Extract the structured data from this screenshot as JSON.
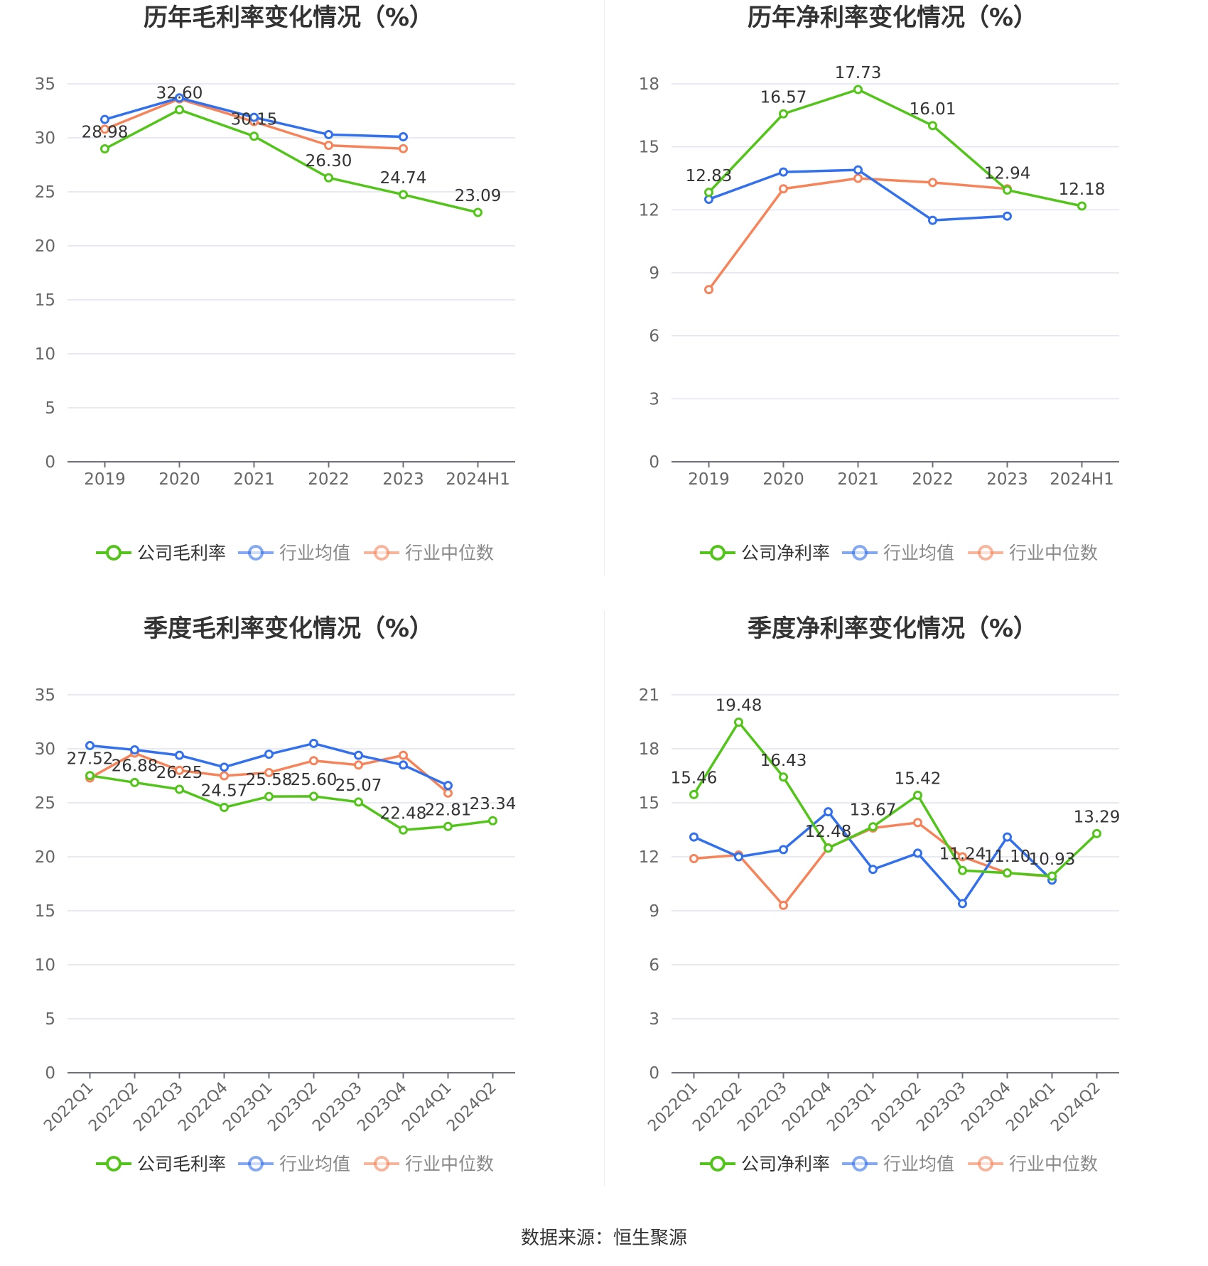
{
  "source": "数据来源：恒生聚源",
  "colors": {
    "company": "#52c41a",
    "avg": "#3370eb",
    "median": "#f5845a"
  },
  "chart_data": [
    {
      "type": "line",
      "title": "历年毛利率变化情况（%）",
      "categories": [
        "2019",
        "2020",
        "2021",
        "2022",
        "2023",
        "2024H1"
      ],
      "ylim": [
        0,
        35
      ],
      "yticks": [
        0,
        5,
        10,
        15,
        20,
        25,
        30,
        35
      ],
      "grid": true,
      "legend_position": "bottom",
      "series": [
        {
          "name": "公司毛利率",
          "values": [
            28.98,
            32.6,
            30.15,
            26.3,
            24.74,
            23.09
          ],
          "labels": [
            "28.98",
            "32.60",
            "30.15",
            "26.30",
            "24.74",
            "23.09"
          ]
        },
        {
          "name": "行业均值",
          "values": [
            31.7,
            33.7,
            31.9,
            30.3,
            30.1,
            null
          ]
        },
        {
          "name": "行业中位数",
          "values": [
            30.8,
            33.6,
            31.5,
            29.3,
            29.0,
            null
          ]
        }
      ]
    },
    {
      "type": "line",
      "title": "历年净利率变化情况（%）",
      "categories": [
        "2019",
        "2020",
        "2021",
        "2022",
        "2023",
        "2024H1"
      ],
      "ylim": [
        0,
        18
      ],
      "yticks": [
        0,
        3,
        6,
        9,
        12,
        15,
        18
      ],
      "grid": true,
      "legend_position": "bottom",
      "series": [
        {
          "name": "公司净利率",
          "values": [
            12.83,
            16.57,
            17.73,
            16.01,
            12.94,
            12.18
          ],
          "labels": [
            "12.83",
            "16.57",
            "17.73",
            "16.01",
            "12.94",
            "12.18"
          ]
        },
        {
          "name": "行业均值",
          "values": [
            12.5,
            13.8,
            13.9,
            11.5,
            11.7,
            null
          ]
        },
        {
          "name": "行业中位数",
          "values": [
            8.2,
            13.0,
            13.5,
            13.3,
            13.0,
            null
          ]
        }
      ]
    },
    {
      "type": "line",
      "title": "季度毛利率变化情况（%）",
      "categories": [
        "2022Q1",
        "2022Q2",
        "2022Q3",
        "2022Q4",
        "2023Q1",
        "2023Q2",
        "2023Q3",
        "2023Q4",
        "2024Q1",
        "2024Q2"
      ],
      "ylim": [
        0,
        35
      ],
      "yticks": [
        0,
        5,
        10,
        15,
        20,
        25,
        30,
        35
      ],
      "grid": true,
      "legend_position": "bottom",
      "series": [
        {
          "name": "公司毛利率",
          "values": [
            27.52,
            26.88,
            26.25,
            24.57,
            25.58,
            25.6,
            25.07,
            22.48,
            22.81,
            23.34
          ],
          "labels": [
            "27.52",
            "26.88",
            "26.25",
            "24.57",
            "25.58",
            "25.60",
            "25.07",
            "22.48",
            "22.81",
            "23.34"
          ]
        },
        {
          "name": "行业均值",
          "values": [
            30.3,
            29.9,
            29.4,
            28.3,
            29.5,
            30.5,
            29.4,
            28.5,
            26.6,
            null
          ]
        },
        {
          "name": "行业中位数",
          "values": [
            27.3,
            29.6,
            28.0,
            27.5,
            27.8,
            28.9,
            28.5,
            29.4,
            25.9,
            null
          ]
        }
      ]
    },
    {
      "type": "line",
      "title": "季度净利率变化情况（%）",
      "categories": [
        "2022Q1",
        "2022Q2",
        "2022Q3",
        "2022Q4",
        "2023Q1",
        "2023Q2",
        "2023Q3",
        "2023Q4",
        "2024Q1",
        "2024Q2"
      ],
      "ylim": [
        0,
        21
      ],
      "yticks": [
        0,
        3,
        6,
        9,
        12,
        15,
        18,
        21
      ],
      "grid": true,
      "legend_position": "bottom",
      "series": [
        {
          "name": "公司净利率",
          "values": [
            15.46,
            19.48,
            16.43,
            12.48,
            13.67,
            15.42,
            11.24,
            11.1,
            10.93,
            13.29
          ],
          "labels": [
            "15.46",
            "19.48",
            "16.43",
            "12.48",
            "13.67",
            "15.42",
            "11.24",
            "11.10",
            "10.93",
            "13.29"
          ]
        },
        {
          "name": "行业均值",
          "values": [
            13.1,
            12.0,
            12.4,
            14.5,
            11.3,
            12.2,
            9.4,
            13.1,
            10.7,
            null
          ]
        },
        {
          "name": "行业中位数",
          "values": [
            11.9,
            12.1,
            9.3,
            12.5,
            13.6,
            13.9,
            12.0,
            11.1,
            10.9,
            null
          ]
        }
      ]
    }
  ]
}
